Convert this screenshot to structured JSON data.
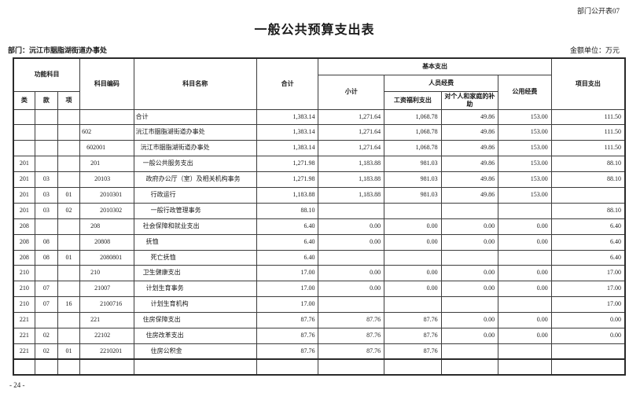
{
  "page": {
    "doc_label": "部门公开表07",
    "title": "一般公共预算支出表",
    "department_label": "部门：沅江市胭脂湖街道办事处",
    "unit_label": "金额单位：万元",
    "page_number": "- 24 -"
  },
  "table": {
    "headers": {
      "functional_subject": "功能科目",
      "category": "类",
      "section": "款",
      "item": "项",
      "subject_code": "科目编码",
      "subject_name": "科目名称",
      "total": "合计",
      "basic_expenditure": "基本支出",
      "subtotal": "小计",
      "personnel_funds": "人员经费",
      "salary_welfare": "工资福利支出",
      "individual_family_subsidy": "对个人和家庭的补助",
      "public_funds": "公用经费",
      "project_expenditure": "项目支出"
    },
    "rows": [
      {
        "cls": "",
        "sec": "",
        "item": "",
        "code": "",
        "name": "合计",
        "level": 0,
        "total": "1,383.14",
        "subtotal": "1,271.64",
        "salary": "1,068.78",
        "family": "49.86",
        "public": "153.00",
        "project": "111.50"
      },
      {
        "cls": "",
        "sec": "",
        "item": "",
        "code": "602",
        "name": "沅江市胭脂湖街道办事处",
        "level": 0,
        "total": "1,383.14",
        "subtotal": "1,271.64",
        "salary": "1,068.78",
        "family": "49.86",
        "public": "153.00",
        "project": "111.50"
      },
      {
        "cls": "",
        "sec": "",
        "item": "",
        "code": "602001",
        "name": "沅江市胭脂湖街道办事处",
        "level": 1,
        "total": "1,383.14",
        "subtotal": "1,271.64",
        "salary": "1,068.78",
        "family": "49.86",
        "public": "153.00",
        "project": "111.50"
      },
      {
        "cls": "201",
        "sec": "",
        "item": "",
        "code": "201",
        "name": "一般公共服务支出",
        "level": 2,
        "total": "1,271.98",
        "subtotal": "1,183.88",
        "salary": "981.03",
        "family": "49.86",
        "public": "153.00",
        "project": "88.10"
      },
      {
        "cls": "201",
        "sec": "03",
        "item": "",
        "code": "20103",
        "name": "政府办公厅（室）及相关机构事务",
        "level": 3,
        "total": "1,271.98",
        "subtotal": "1,183.88",
        "salary": "981.03",
        "family": "49.86",
        "public": "153.00",
        "project": "88.10"
      },
      {
        "cls": "201",
        "sec": "03",
        "item": "01",
        "code": "2010301",
        "name": "行政运行",
        "level": 4,
        "total": "1,183.88",
        "subtotal": "1,183.88",
        "salary": "981.03",
        "family": "49.86",
        "public": "153.00",
        "project": ""
      },
      {
        "cls": "201",
        "sec": "03",
        "item": "02",
        "code": "2010302",
        "name": "一般行政管理事务",
        "level": 4,
        "total": "88.10",
        "subtotal": "",
        "salary": "",
        "family": "",
        "public": "",
        "project": "88.10"
      },
      {
        "cls": "208",
        "sec": "",
        "item": "",
        "code": "208",
        "name": "社会保障和就业支出",
        "level": 2,
        "total": "6.40",
        "subtotal": "0.00",
        "salary": "0.00",
        "family": "0.00",
        "public": "0.00",
        "project": "6.40"
      },
      {
        "cls": "208",
        "sec": "08",
        "item": "",
        "code": "20808",
        "name": "抚恤",
        "level": 3,
        "total": "6.40",
        "subtotal": "0.00",
        "salary": "0.00",
        "family": "0.00",
        "public": "0.00",
        "project": "6.40"
      },
      {
        "cls": "208",
        "sec": "08",
        "item": "01",
        "code": "2080801",
        "name": "死亡抚恤",
        "level": 4,
        "total": "6.40",
        "subtotal": "",
        "salary": "",
        "family": "",
        "public": "",
        "project": "6.40"
      },
      {
        "cls": "210",
        "sec": "",
        "item": "",
        "code": "210",
        "name": "卫生健康支出",
        "level": 2,
        "total": "17.00",
        "subtotal": "0.00",
        "salary": "0.00",
        "family": "0.00",
        "public": "0.00",
        "project": "17.00"
      },
      {
        "cls": "210",
        "sec": "07",
        "item": "",
        "code": "21007",
        "name": "计划生育事务",
        "level": 3,
        "total": "17.00",
        "subtotal": "0.00",
        "salary": "0.00",
        "family": "0.00",
        "public": "0.00",
        "project": "17.00"
      },
      {
        "cls": "210",
        "sec": "07",
        "item": "16",
        "code": "2100716",
        "name": "计划生育机构",
        "level": 4,
        "total": "17.00",
        "subtotal": "",
        "salary": "",
        "family": "",
        "public": "",
        "project": "17.00"
      },
      {
        "cls": "221",
        "sec": "",
        "item": "",
        "code": "221",
        "name": "住房保障支出",
        "level": 2,
        "total": "87.76",
        "subtotal": "87.76",
        "salary": "87.76",
        "family": "0.00",
        "public": "0.00",
        "project": "0.00"
      },
      {
        "cls": "221",
        "sec": "02",
        "item": "",
        "code": "22102",
        "name": "住房改革支出",
        "level": 3,
        "total": "87.76",
        "subtotal": "87.76",
        "salary": "87.76",
        "family": "0.00",
        "public": "0.00",
        "project": "0.00"
      },
      {
        "cls": "221",
        "sec": "02",
        "item": "01",
        "code": "2210201",
        "name": "住房公积金",
        "level": 4,
        "total": "87.76",
        "subtotal": "87.76",
        "salary": "87.76",
        "family": "",
        "public": "",
        "project": ""
      },
      {
        "cls": "",
        "sec": "",
        "item": "",
        "code": "",
        "name": "",
        "level": 0,
        "total": "",
        "subtotal": "",
        "salary": "",
        "family": "",
        "public": "",
        "project": ""
      }
    ]
  }
}
